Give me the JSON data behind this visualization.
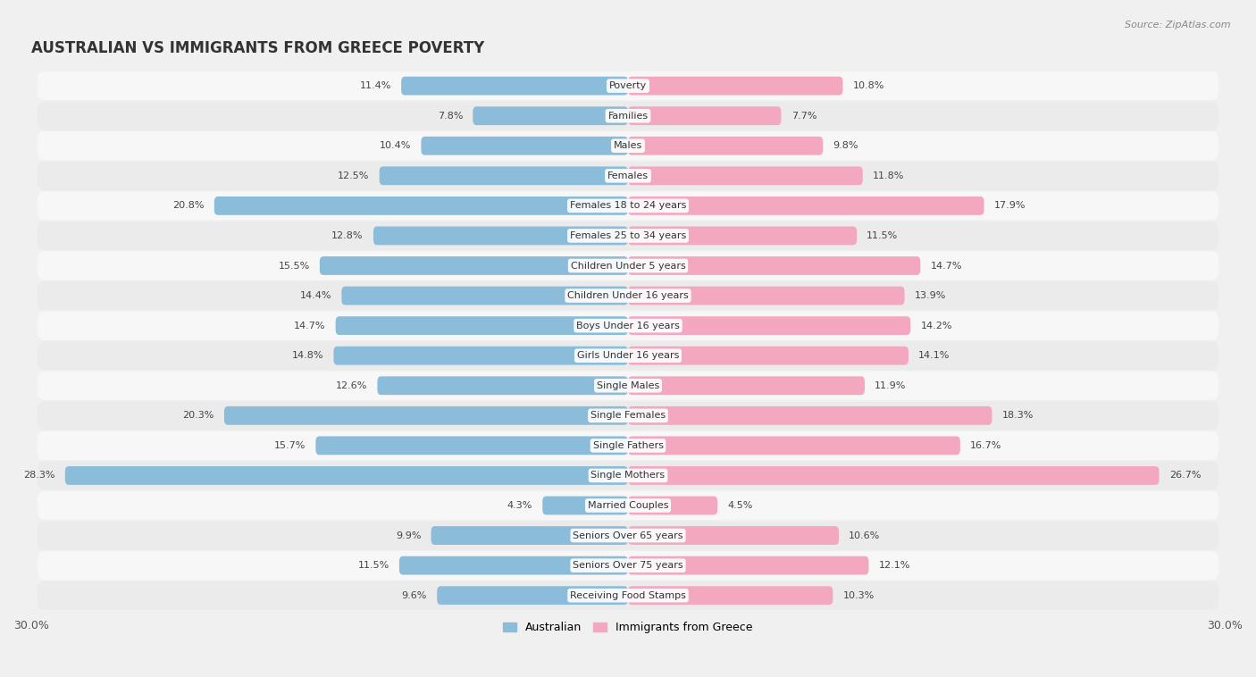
{
  "title": "AUSTRALIAN VS IMMIGRANTS FROM GREECE POVERTY",
  "source": "Source: ZipAtlas.com",
  "categories": [
    "Poverty",
    "Families",
    "Males",
    "Females",
    "Females 18 to 24 years",
    "Females 25 to 34 years",
    "Children Under 5 years",
    "Children Under 16 years",
    "Boys Under 16 years",
    "Girls Under 16 years",
    "Single Males",
    "Single Females",
    "Single Fathers",
    "Single Mothers",
    "Married Couples",
    "Seniors Over 65 years",
    "Seniors Over 75 years",
    "Receiving Food Stamps"
  ],
  "australian": [
    11.4,
    7.8,
    10.4,
    12.5,
    20.8,
    12.8,
    15.5,
    14.4,
    14.7,
    14.8,
    12.6,
    20.3,
    15.7,
    28.3,
    4.3,
    9.9,
    11.5,
    9.6
  ],
  "immigrants": [
    10.8,
    7.7,
    9.8,
    11.8,
    17.9,
    11.5,
    14.7,
    13.9,
    14.2,
    14.1,
    11.9,
    18.3,
    16.7,
    26.7,
    4.5,
    10.6,
    12.1,
    10.3
  ],
  "australian_color": "#8bbcda",
  "immigrant_color": "#f4a8bf",
  "row_color_odd": "#f5f5f5",
  "row_color_even": "#e8e8e8",
  "background_color": "#f0f0f0",
  "axis_limit": 30.0,
  "bar_height": 0.62,
  "title_fontsize": 12,
  "label_fontsize": 8,
  "value_fontsize": 8,
  "legend_fontsize": 9
}
